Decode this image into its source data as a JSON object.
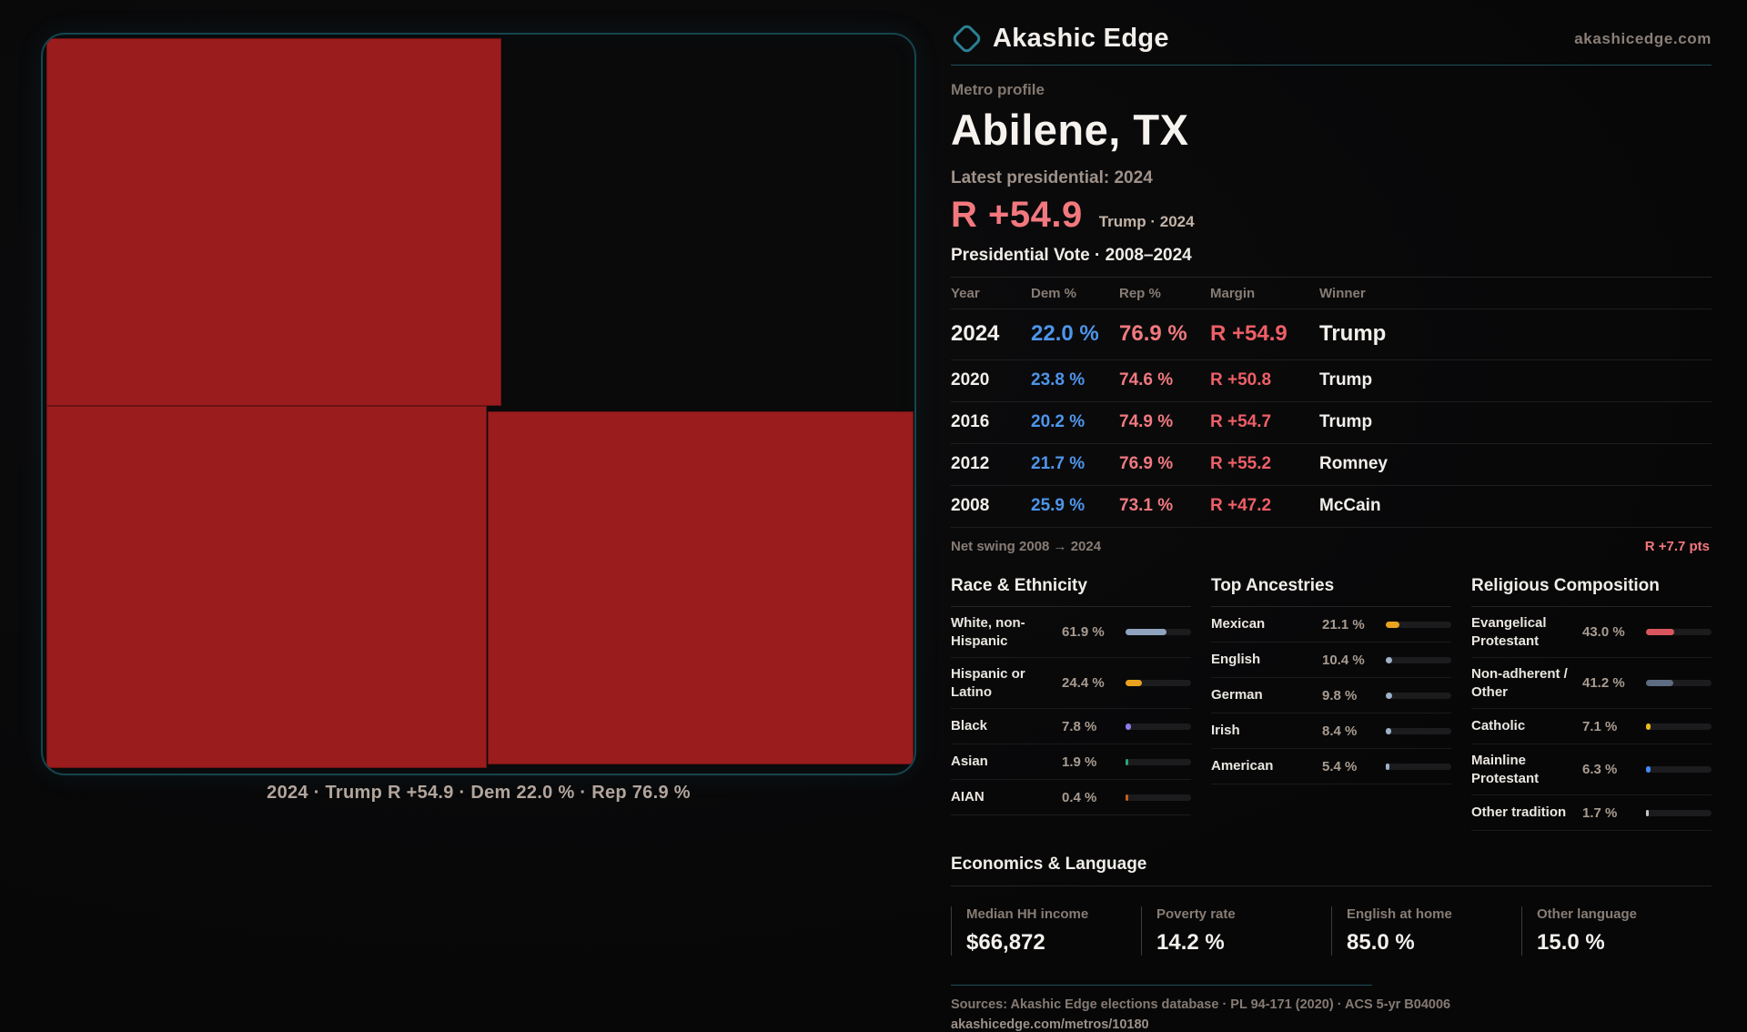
{
  "brand": {
    "name": "Akashic Edge",
    "domain": "akashicedge.com"
  },
  "colors": {
    "accent_teal": "#1d4e57",
    "county_fill": "#9b1c1d",
    "dem_blue": "#4e95ea",
    "rep_salmon": "#f0797f"
  },
  "map": {
    "caption": "2024 · Trump R +54.9 · Dem 22.0 % · Rep 76.9 %",
    "fill": "#9b1c1d"
  },
  "profile": {
    "kicker": "Metro profile",
    "title": "Abilene, TX",
    "latest_label": "Latest presidential: 2024",
    "headline_margin": "R +54.9",
    "headline_note": "Trump · 2024"
  },
  "vote_table": {
    "title": "Presidential Vote · 2008–2024",
    "headers": [
      "Year",
      "Dem %",
      "Rep %",
      "Margin",
      "Winner"
    ],
    "rows": [
      {
        "year": "2024",
        "dem": "22.0 %",
        "rep": "76.9 %",
        "margin": "R +54.9",
        "winner": "Trump"
      },
      {
        "year": "2020",
        "dem": "23.8 %",
        "rep": "74.6 %",
        "margin": "R +50.8",
        "winner": "Trump"
      },
      {
        "year": "2016",
        "dem": "20.2 %",
        "rep": "74.9 %",
        "margin": "R +54.7",
        "winner": "Trump"
      },
      {
        "year": "2012",
        "dem": "21.7 %",
        "rep": "76.9 %",
        "margin": "R +55.2",
        "winner": "Romney"
      },
      {
        "year": "2008",
        "dem": "25.9 %",
        "rep": "73.1 %",
        "margin": "R +47.2",
        "winner": "McCain"
      }
    ]
  },
  "net_swing": {
    "label": "Net swing 2008 → 2024",
    "value": "R +7.7 pts"
  },
  "sections": {
    "race": {
      "title": "Race & Ethnicity",
      "rows": [
        {
          "label": "White, non-Hispanic",
          "value": "61.9 %",
          "pct": 61.9,
          "color": "#8fa3be"
        },
        {
          "label": "Hispanic or Latino",
          "value": "24.4 %",
          "pct": 24.4,
          "color": "#e9a21e"
        },
        {
          "label": "Black",
          "value": "7.8 %",
          "pct": 7.8,
          "color": "#8d7bee"
        },
        {
          "label": "Asian",
          "value": "1.9 %",
          "pct": 1.9,
          "color": "#27a578"
        },
        {
          "label": "AIAN",
          "value": "0.4 %",
          "pct": 0.4,
          "color": "#c25e1e"
        }
      ]
    },
    "ancestries": {
      "title": "Top Ancestries",
      "rows": [
        {
          "label": "Mexican",
          "value": "21.1 %",
          "pct": 21.1,
          "color": "#e9a21e"
        },
        {
          "label": "English",
          "value": "10.4 %",
          "pct": 10.4,
          "color": "#9db1c7"
        },
        {
          "label": "German",
          "value": "9.8 %",
          "pct": 9.8,
          "color": "#9db1c7"
        },
        {
          "label": "Irish",
          "value": "8.4 %",
          "pct": 8.4,
          "color": "#9db1c7"
        },
        {
          "label": "American",
          "value": "5.4 %",
          "pct": 5.4,
          "color": "#9db1c7"
        }
      ]
    },
    "religion": {
      "title": "Religious Composition",
      "rows": [
        {
          "label": "Evangelical Protestant",
          "value": "43.0 %",
          "pct": 43.0,
          "color": "#d9565e"
        },
        {
          "label": "Non-adherent / Other",
          "value": "41.2 %",
          "pct": 41.2,
          "color": "#5d6c82"
        },
        {
          "label": "Catholic",
          "value": "7.1 %",
          "pct": 7.1,
          "color": "#eab91d"
        },
        {
          "label": "Mainline Protestant",
          "value": "6.3 %",
          "pct": 6.3,
          "color": "#3f8cf2"
        },
        {
          "label": "Other tradition",
          "value": "1.7 %",
          "pct": 1.7,
          "color": "#c9c4bf"
        }
      ]
    }
  },
  "economics": {
    "title": "Economics & Language",
    "stats": [
      {
        "label": "Median HH income",
        "value": "$66,872"
      },
      {
        "label": "Poverty rate",
        "value": "14.2 %"
      },
      {
        "label": "English at home",
        "value": "85.0 %"
      },
      {
        "label": "Other language",
        "value": "15.0 %"
      }
    ]
  },
  "footer": {
    "sources": "Sources: Akashic Edge elections database · PL 94-171 (2020) · ACS 5-yr B04006",
    "link": "akashicedge.com/metros/10180"
  }
}
